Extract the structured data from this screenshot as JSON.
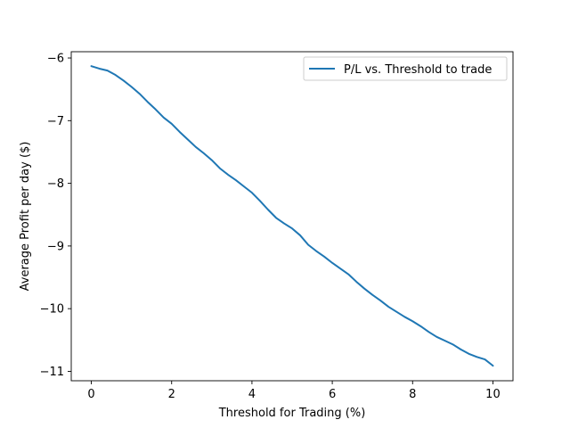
{
  "chart_data": {
    "type": "line",
    "title": "",
    "xlabel": "Threshold for Trading (%)",
    "ylabel": "Average Profit per day ($)",
    "xlim": [
      -0.5,
      10.5
    ],
    "ylim": [
      -11.15,
      -5.9
    ],
    "xticks": [
      0,
      2,
      4,
      6,
      8,
      10
    ],
    "xtick_labels": [
      "0",
      "2",
      "4",
      "6",
      "8",
      "10"
    ],
    "yticks": [
      -6,
      -7,
      -8,
      -9,
      -10,
      -11
    ],
    "ytick_labels": [
      "−6",
      "−7",
      "−8",
      "−9",
      "−10",
      "−11"
    ],
    "grid": false,
    "legend": {
      "position": "top-right"
    },
    "series": [
      {
        "name": "P/L vs. Threshold to trade",
        "color": "#1f77b4",
        "x": [
          0,
          0.2,
          0.4,
          0.6,
          0.8,
          1.0,
          1.2,
          1.4,
          1.6,
          1.8,
          2.0,
          2.2,
          2.4,
          2.6,
          2.8,
          3.0,
          3.2,
          3.4,
          3.6,
          3.8,
          4.0,
          4.2,
          4.4,
          4.6,
          4.8,
          5.0,
          5.2,
          5.4,
          5.6,
          5.8,
          6.0,
          6.2,
          6.4,
          6.6,
          6.8,
          7.0,
          7.2,
          7.4,
          7.6,
          7.8,
          8.0,
          8.2,
          8.4,
          8.6,
          8.8,
          9.0,
          9.2,
          9.4,
          9.6,
          9.8,
          10.0
        ],
        "y": [
          -6.13,
          -6.17,
          -6.2,
          -6.27,
          -6.36,
          -6.46,
          -6.57,
          -6.7,
          -6.82,
          -6.95,
          -7.05,
          -7.18,
          -7.3,
          -7.42,
          -7.52,
          -7.63,
          -7.76,
          -7.86,
          -7.95,
          -8.05,
          -8.15,
          -8.28,
          -8.42,
          -8.55,
          -8.64,
          -8.72,
          -8.83,
          -8.98,
          -9.08,
          -9.17,
          -9.27,
          -9.36,
          -9.45,
          -9.57,
          -9.68,
          -9.78,
          -9.87,
          -9.97,
          -10.05,
          -10.13,
          -10.2,
          -10.28,
          -10.37,
          -10.45,
          -10.51,
          -10.57,
          -10.65,
          -10.72,
          -10.77,
          -10.81,
          -10.91
        ]
      }
    ]
  }
}
